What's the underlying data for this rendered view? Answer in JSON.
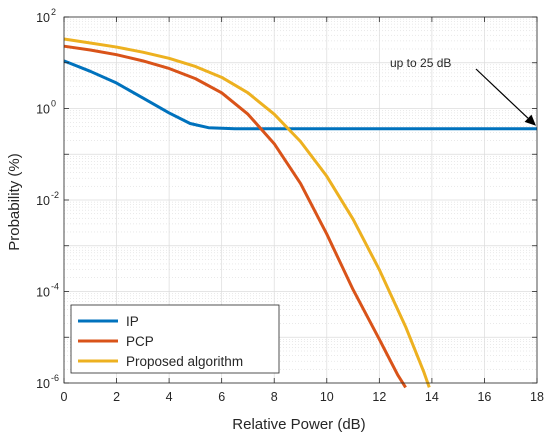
{
  "chart_data": {
    "type": "line",
    "xlabel": "Relative Power (dB)",
    "ylabel": "Probability (%)",
    "xlim": [
      0,
      18
    ],
    "ylim": [
      1e-06,
      100
    ],
    "yscale": "log",
    "xticks": [
      0,
      2,
      4,
      6,
      8,
      10,
      12,
      14,
      16,
      18
    ],
    "yticks": [
      {
        "base": "10",
        "exp": "2",
        "value": 100
      },
      {
        "base": "10",
        "exp": "0",
        "value": 1
      },
      {
        "base": "10",
        "exp": "-2",
        "value": 0.01
      },
      {
        "base": "10",
        "exp": "-4",
        "value": 0.0001
      },
      {
        "base": "10",
        "exp": "-6",
        "value": 1e-06
      }
    ],
    "grid": true,
    "legend_position": "bottom-left",
    "annotation": {
      "text": "up to 25 dB",
      "arrow_to": {
        "x": 18,
        "y": 0.36
      }
    },
    "series": [
      {
        "name": "IP",
        "color": "#0072BD",
        "points": [
          [
            0,
            11
          ],
          [
            1,
            6.5
          ],
          [
            2,
            3.6
          ],
          [
            3,
            1.7
          ],
          [
            4,
            0.8
          ],
          [
            4.8,
            0.47
          ],
          [
            5.5,
            0.38
          ],
          [
            6.5,
            0.36
          ],
          [
            8,
            0.36
          ],
          [
            10,
            0.36
          ],
          [
            12,
            0.36
          ],
          [
            14,
            0.36
          ],
          [
            16,
            0.36
          ],
          [
            18,
            0.36
          ]
        ]
      },
      {
        "name": "PCP",
        "color": "#D95319",
        "points": [
          [
            0,
            23
          ],
          [
            1,
            19
          ],
          [
            2,
            15
          ],
          [
            3,
            11
          ],
          [
            4,
            7.5
          ],
          [
            5,
            4.5
          ],
          [
            6,
            2.2
          ],
          [
            7,
            0.75
          ],
          [
            8,
            0.17
          ],
          [
            9,
            0.023
          ],
          [
            10,
            0.0018
          ],
          [
            11,
            0.00011
          ],
          [
            12,
            9e-06
          ],
          [
            12.7,
            1.5e-06
          ],
          [
            13,
            8e-07
          ]
        ]
      },
      {
        "name": "Proposed algorithm",
        "color": "#EDB120",
        "points": [
          [
            0,
            33
          ],
          [
            1,
            27
          ],
          [
            2,
            22
          ],
          [
            3,
            17
          ],
          [
            4,
            12.5
          ],
          [
            5,
            8.3
          ],
          [
            6,
            4.8
          ],
          [
            7,
            2.2
          ],
          [
            8,
            0.75
          ],
          [
            9,
            0.19
          ],
          [
            10,
            0.033
          ],
          [
            11,
            0.0038
          ],
          [
            12,
            0.0003
          ],
          [
            13,
            1.7e-05
          ],
          [
            13.7,
            1.7e-06
          ],
          [
            13.9,
            8e-07
          ]
        ]
      }
    ]
  }
}
